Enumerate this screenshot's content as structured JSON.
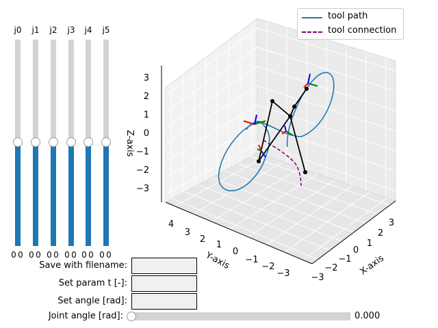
{
  "joint_sliders": [
    {
      "label": "j0",
      "min_label": "0",
      "max_label": "0",
      "value": 0.5
    },
    {
      "label": "j1",
      "min_label": "0",
      "max_label": "0",
      "value": 0.5
    },
    {
      "label": "j2",
      "min_label": "0",
      "max_label": "0",
      "value": 0.5
    },
    {
      "label": "j3",
      "min_label": "0",
      "max_label": "0",
      "value": 0.5
    },
    {
      "label": "j4",
      "min_label": "0",
      "max_label": "0",
      "value": 0.5
    },
    {
      "label": "j5",
      "min_label": "0",
      "max_label": "0",
      "value": 0.5
    }
  ],
  "plot": {
    "axis_labels": {
      "x": "X-axis",
      "y": "Y-axis",
      "z": "Z-axis"
    },
    "x_ticks": [
      "−3",
      "−2",
      "−1",
      "0",
      "1",
      "2",
      "3"
    ],
    "y_ticks": [
      "4",
      "3",
      "2",
      "1",
      "0",
      "−1",
      "−2",
      "−3"
    ],
    "z_ticks": [
      "3",
      "2",
      "1",
      "0",
      "−1",
      "−2",
      "−3"
    ],
    "legend": [
      {
        "label": "tool path",
        "color": "#1f77b4",
        "style": "solid"
      },
      {
        "label": "tool connection",
        "color": "#800080",
        "style": "dashed"
      }
    ]
  },
  "form": {
    "filename_label": "Save with filename:",
    "filename_value": "",
    "param_t_label": "Set param t [-]:",
    "param_t_value": "",
    "angle_label": "Set angle [rad]:",
    "angle_value": ""
  },
  "joint_angle_slider": {
    "label": "Joint angle [rad]:",
    "value_text": "0.000",
    "fraction": 0.0
  },
  "colors": {
    "slider_fill": "#1f77b4",
    "slider_track": "#d3d3d3",
    "robot_links": "#000000",
    "axis_x": "#ff0000",
    "axis_y": "#008000",
    "axis_z": "#0000ff"
  }
}
